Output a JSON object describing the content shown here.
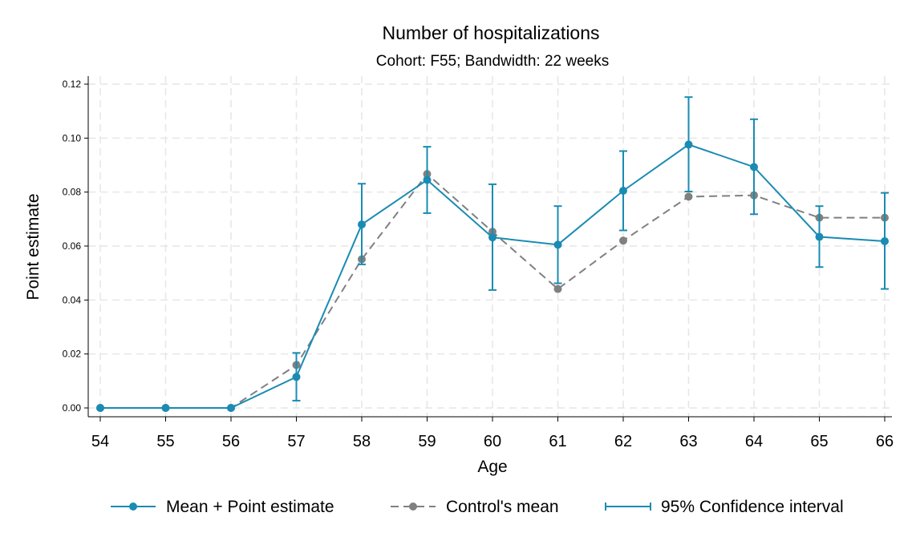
{
  "chart_data": {
    "type": "line",
    "title": "Number of hospitalizations",
    "subtitle": "Cohort: F55; Bandwidth: 22 weeks",
    "xlabel": "Age",
    "ylabel": "Point estimate",
    "x": [
      54,
      55,
      56,
      57,
      58,
      59,
      60,
      61,
      62,
      63,
      64,
      65,
      66
    ],
    "xlim": [
      54,
      66
    ],
    "ylim": [
      0,
      0.12
    ],
    "yticks": [
      "0.00",
      "0.02",
      "0.04",
      "0.06",
      "0.08",
      "0.10",
      "0.12"
    ],
    "ytick_values": [
      0,
      0.02,
      0.04,
      0.06,
      0.08,
      0.1,
      0.12
    ],
    "grid": true,
    "legend_position": "bottom",
    "series": [
      {
        "name": "Mean + Point estimate",
        "color": "#1a8bb3",
        "style": "solid-markers",
        "values": [
          0,
          0,
          0,
          0.0115,
          0.068,
          0.0845,
          0.0632,
          0.0605,
          0.0805,
          0.0976,
          0.0893,
          0.0634,
          0.0618
        ]
      },
      {
        "name": "Control's mean",
        "color": "#808080",
        "style": "dashed-markers",
        "values": [
          0,
          0,
          0,
          0.0159,
          0.0551,
          0.0867,
          0.0653,
          0.0441,
          0.062,
          0.0783,
          0.0788,
          0.0705,
          0.0705
        ]
      },
      {
        "name": "95% Confidence interval",
        "color": "#1a8bb3",
        "style": "errorbar",
        "lower": [
          0,
          0,
          0,
          0.0027,
          0.0532,
          0.0722,
          0.0437,
          0.0462,
          0.0658,
          0.0802,
          0.0718,
          0.0522,
          0.0441
        ],
        "upper": [
          0,
          0,
          0,
          0.0204,
          0.0831,
          0.0968,
          0.0829,
          0.0748,
          0.0952,
          0.1152,
          0.107,
          0.0748,
          0.0797
        ]
      }
    ]
  }
}
